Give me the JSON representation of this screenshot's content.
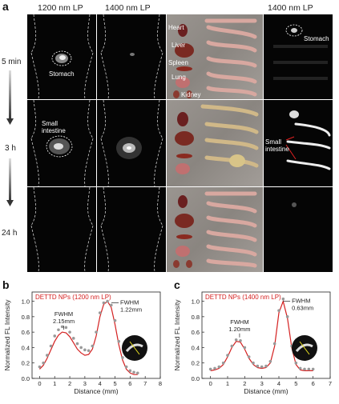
{
  "figure": {
    "panel_a_label": "a",
    "panel_b_label": "b",
    "panel_c_label": "c",
    "col_headers": [
      "1200 nm LP",
      "1400 nm LP",
      "1400 nm LP"
    ],
    "row_labels": [
      "5 min",
      "3 h",
      "24 h"
    ],
    "organ_labels": [
      "Heart",
      "Liver",
      "Spleen",
      "Lung",
      "Kidney"
    ],
    "stomach_label": "Stomach",
    "stomach_label_right": "Stomach",
    "small_intestine_label": "Small\nintestine",
    "small_intestine_label_right": "Small\nintestine",
    "colors": {
      "fit_line": "#d42020",
      "points": "#999999",
      "title_red": "#d42020"
    }
  },
  "chart_data": [
    {
      "type": "scatter",
      "title": "DETTD NPs (1200 nm LP)",
      "xlabel": "Distance (mm)",
      "ylabel": "Normalized FL Intensity",
      "xlim": [
        -0.5,
        8
      ],
      "ylim": [
        0,
        1.12
      ],
      "xticks": [
        "0",
        "1",
        "2",
        "3",
        "4",
        "5",
        "6",
        "7",
        "8"
      ],
      "yticks": [
        "0.0",
        "0.2",
        "0.4",
        "0.6",
        "0.8",
        "1.0"
      ],
      "annotations": [
        {
          "label": "FWHM\n2.15mm",
          "x": 1.6,
          "y": 0.6
        },
        {
          "label": "FWHM\n1.22mm",
          "x": 4.6,
          "y": 0.98
        }
      ],
      "series": [
        {
          "kind": "points",
          "x": [
            0,
            0.25,
            0.5,
            0.75,
            1.0,
            1.25,
            1.5,
            1.75,
            2.0,
            2.25,
            2.5,
            2.75,
            3.0,
            3.25,
            3.5,
            3.75,
            4.0,
            4.25,
            4.5,
            4.75,
            5.0,
            5.25,
            5.5,
            5.75,
            6.0,
            6.25,
            6.5
          ],
          "y": [
            0.15,
            0.2,
            0.3,
            0.42,
            0.55,
            0.63,
            0.67,
            0.66,
            0.6,
            0.52,
            0.45,
            0.4,
            0.37,
            0.36,
            0.42,
            0.6,
            0.85,
            0.98,
            1.0,
            0.95,
            0.75,
            0.48,
            0.27,
            0.15,
            0.1,
            0.08,
            0.07
          ]
        },
        {
          "kind": "line",
          "x": [
            0,
            0.25,
            0.5,
            0.75,
            1.0,
            1.25,
            1.5,
            1.75,
            2.0,
            2.25,
            2.5,
            2.75,
            3.0,
            3.25,
            3.5,
            3.75,
            4.0,
            4.25,
            4.5,
            4.75,
            5.0,
            5.25,
            5.5,
            5.75,
            6.0,
            6.25,
            6.5
          ],
          "y": [
            0.12,
            0.17,
            0.26,
            0.37,
            0.48,
            0.56,
            0.6,
            0.59,
            0.54,
            0.46,
            0.38,
            0.33,
            0.3,
            0.31,
            0.38,
            0.55,
            0.8,
            0.96,
            1.0,
            0.92,
            0.7,
            0.44,
            0.24,
            0.12,
            0.07,
            0.05,
            0.05
          ]
        }
      ]
    },
    {
      "type": "scatter",
      "title": "DETTD NPs (1400 nm LP)",
      "xlabel": "Distance (mm)",
      "ylabel": "Normalized FL Intensity",
      "xlim": [
        -0.5,
        7
      ],
      "ylim": [
        0,
        1.12
      ],
      "xticks": [
        "0",
        "1",
        "2",
        "3",
        "4",
        "5",
        "6",
        "7"
      ],
      "yticks": [
        "0.0",
        "0.2",
        "0.4",
        "0.6",
        "0.8",
        "1.0"
      ],
      "annotations": [
        {
          "label": "FWHM\n1.20mm",
          "x": 1.7,
          "y": 0.5
        },
        {
          "label": "FWHM\n0.63mm",
          "x": 4.1,
          "y": 1.0
        }
      ],
      "series": [
        {
          "kind": "points",
          "x": [
            0,
            0.25,
            0.5,
            0.75,
            1.0,
            1.25,
            1.5,
            1.75,
            2.0,
            2.25,
            2.5,
            2.75,
            3.0,
            3.25,
            3.5,
            3.75,
            4.0,
            4.25,
            4.5,
            4.75,
            5.0,
            5.25,
            5.5,
            5.75,
            6.0
          ],
          "y": [
            0.12,
            0.13,
            0.15,
            0.2,
            0.3,
            0.42,
            0.5,
            0.49,
            0.4,
            0.28,
            0.2,
            0.16,
            0.15,
            0.16,
            0.22,
            0.45,
            0.88,
            1.03,
            0.8,
            0.42,
            0.2,
            0.13,
            0.12,
            0.12,
            0.12
          ]
        },
        {
          "kind": "line",
          "x": [
            0,
            0.25,
            0.5,
            0.75,
            1.0,
            1.25,
            1.5,
            1.75,
            2.0,
            2.25,
            2.5,
            2.75,
            3.0,
            3.25,
            3.5,
            3.75,
            4.0,
            4.25,
            4.5,
            4.75,
            5.0,
            5.25,
            5.5,
            5.75,
            6.0
          ],
          "y": [
            0.1,
            0.11,
            0.13,
            0.18,
            0.28,
            0.4,
            0.48,
            0.47,
            0.38,
            0.26,
            0.18,
            0.14,
            0.13,
            0.14,
            0.2,
            0.42,
            0.85,
            1.0,
            0.78,
            0.4,
            0.18,
            0.11,
            0.1,
            0.1,
            0.1
          ]
        }
      ]
    }
  ]
}
